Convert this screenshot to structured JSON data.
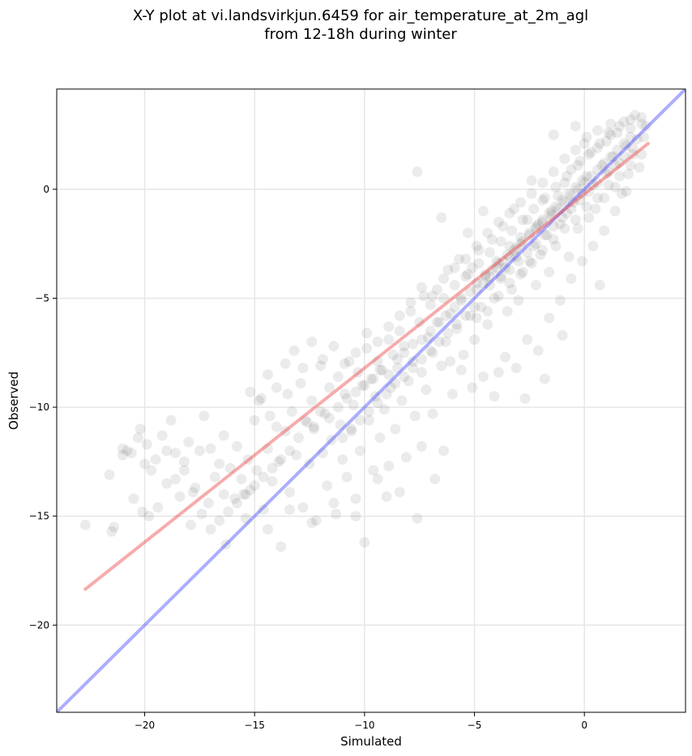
{
  "chart_data": {
    "type": "scatter",
    "title_lines": [
      "X-Y plot at vi.landsvirkjun.6459 for air_temperature_at_2m_agl",
      "from 12-18h during winter"
    ],
    "xlabel": "Simulated",
    "ylabel": "Observed",
    "xlim": [
      -24.0,
      4.6
    ],
    "ylim": [
      -24.0,
      4.6
    ],
    "xticks": [
      -20,
      -15,
      -10,
      -5,
      0
    ],
    "yticks": [
      -20,
      -15,
      -10,
      -5,
      0
    ],
    "xtick_labels": [
      "−20",
      "−15",
      "−10",
      "−5",
      "0"
    ],
    "ytick_labels": [
      "−20",
      "−15",
      "−10",
      "−5",
      "0"
    ],
    "grid": true,
    "point_color": "#000000",
    "point_opacity": 0.08,
    "reference_line": {
      "kind": "one-to-one",
      "color": "#3333ff",
      "x": [
        -24.0,
        4.6
      ],
      "y": [
        -24.0,
        4.6
      ]
    },
    "fit_line": {
      "kind": "linear-fit",
      "color": "#ee4444",
      "x": [
        -22.7,
        2.9
      ],
      "y": [
        -18.35,
        2.1
      ]
    },
    "points": [
      [
        -22.7,
        -15.4
      ],
      [
        -21.6,
        -13.1
      ],
      [
        -21.5,
        -15.7
      ],
      [
        -21.4,
        -15.5
      ],
      [
        -21.0,
        -12.2
      ],
      [
        -20.8,
        -12.0
      ],
      [
        -20.5,
        -14.2
      ],
      [
        -20.3,
        -11.4
      ],
      [
        -20.1,
        -14.8
      ],
      [
        -20.0,
        -12.6
      ],
      [
        -19.9,
        -11.7
      ],
      [
        -19.7,
        -12.9
      ],
      [
        -19.5,
        -12.4
      ],
      [
        -19.2,
        -11.3
      ],
      [
        -19.0,
        -13.5
      ],
      [
        -18.8,
        -10.6
      ],
      [
        -18.6,
        -12.1
      ],
      [
        -18.4,
        -14.1
      ],
      [
        -18.2,
        -12.9
      ],
      [
        -18.0,
        -11.6
      ],
      [
        -17.9,
        -15.4
      ],
      [
        -17.7,
        -13.7
      ],
      [
        -17.5,
        -12.0
      ],
      [
        -17.3,
        -10.4
      ],
      [
        -17.1,
        -14.4
      ],
      [
        -17.0,
        -11.9
      ],
      [
        -16.8,
        -13.2
      ],
      [
        -16.6,
        -12.6
      ],
      [
        -16.4,
        -11.3
      ],
      [
        -16.3,
        -16.3
      ],
      [
        -16.1,
        -12.8
      ],
      [
        -15.9,
        -14.2
      ],
      [
        -15.8,
        -11.8
      ],
      [
        -15.6,
        -13.3
      ],
      [
        -15.5,
        -14.0
      ],
      [
        -15.3,
        -12.4
      ],
      [
        -15.2,
        -13.8
      ],
      [
        -15.0,
        -10.6
      ],
      [
        -14.9,
        -12.9
      ],
      [
        -14.7,
        -9.6
      ],
      [
        -14.6,
        -14.7
      ],
      [
        -14.4,
        -11.9
      ],
      [
        -14.3,
        -10.4
      ],
      [
        -14.2,
        -13.4
      ],
      [
        -14.0,
        -10.9
      ],
      [
        -13.9,
        -12.5
      ],
      [
        -13.8,
        -16.4
      ],
      [
        -13.6,
        -11.1
      ],
      [
        -13.5,
        -9.4
      ],
      [
        -13.4,
        -13.9
      ],
      [
        -13.3,
        -10.2
      ],
      [
        -13.1,
        -12.2
      ],
      [
        -13.0,
        -11.4
      ],
      [
        -12.9,
        -8.9
      ],
      [
        -12.8,
        -14.6
      ],
      [
        -12.6,
        -10.7
      ],
      [
        -12.5,
        -12.6
      ],
      [
        -12.4,
        -9.7
      ],
      [
        -12.3,
        -11.0
      ],
      [
        -12.2,
        -15.2
      ],
      [
        -12.0,
        -8.1
      ],
      [
        -11.9,
        -12.1
      ],
      [
        -11.8,
        -10.3
      ],
      [
        -11.7,
        -13.6
      ],
      [
        -11.6,
        -9.1
      ],
      [
        -11.5,
        -11.5
      ],
      [
        -11.3,
        -14.9
      ],
      [
        -11.2,
        -8.6
      ],
      [
        -11.1,
        -10.8
      ],
      [
        -11.0,
        -12.4
      ],
      [
        -10.9,
        -9.4
      ],
      [
        -10.8,
        -13.2
      ],
      [
        -10.7,
        -7.9
      ],
      [
        -10.6,
        -11.1
      ],
      [
        -10.5,
        -9.9
      ],
      [
        -10.4,
        -14.2
      ],
      [
        -10.3,
        -8.4
      ],
      [
        -10.2,
        -12.0
      ],
      [
        -10.1,
        -9.0
      ],
      [
        -10.0,
        -16.2
      ],
      [
        -9.9,
        -7.3
      ],
      [
        -9.8,
        -10.6
      ],
      [
        -9.7,
        -8.7
      ],
      [
        -9.6,
        -12.9
      ],
      [
        -9.5,
        -9.5
      ],
      [
        -9.4,
        -7.9
      ],
      [
        -9.3,
        -11.4
      ],
      [
        -9.2,
        -8.3
      ],
      [
        -9.1,
        -10.1
      ],
      [
        -9.0,
        -14.1
      ],
      [
        -8.9,
        -6.9
      ],
      [
        -8.8,
        -9.1
      ],
      [
        -8.7,
        -7.6
      ],
      [
        -8.6,
        -11.0
      ],
      [
        -8.5,
        -8.2
      ],
      [
        -8.4,
        -6.5
      ],
      [
        -8.3,
        -9.7
      ],
      [
        -8.2,
        -7.2
      ],
      [
        -8.1,
        -12.3
      ],
      [
        -8.0,
        -8.8
      ],
      [
        -7.9,
        -5.6
      ],
      [
        -7.8,
        -7.9
      ],
      [
        -7.7,
        -10.4
      ],
      [
        -7.6,
        -15.1
      ],
      [
        -7.6,
        0.8
      ],
      [
        -7.5,
        -6.1
      ],
      [
        -7.4,
        -8.4
      ],
      [
        -7.3,
        -4.9
      ],
      [
        -7.2,
        -9.2
      ],
      [
        -7.1,
        -6.8
      ],
      [
        -7.0,
        -5.3
      ],
      [
        -6.9,
        -7.5
      ],
      [
        -6.8,
        -13.3
      ],
      [
        -6.7,
        -4.6
      ],
      [
        -6.6,
        -6.1
      ],
      [
        -6.5,
        -8.1
      ],
      [
        -6.5,
        -1.3
      ],
      [
        -6.4,
        -5.0
      ],
      [
        -6.3,
        -7.0
      ],
      [
        -6.2,
        -3.7
      ],
      [
        -6.1,
        -5.7
      ],
      [
        -6.0,
        -9.4
      ],
      [
        -5.9,
        -4.4
      ],
      [
        -5.8,
        -6.4
      ],
      [
        -5.7,
        -3.2
      ],
      [
        -5.6,
        -5.1
      ],
      [
        -5.5,
        -7.6
      ],
      [
        -5.4,
        -4.0
      ],
      [
        -5.3,
        -2.0
      ],
      [
        -5.2,
        -5.8
      ],
      [
        -5.1,
        -3.6
      ],
      [
        -5.0,
        -6.9
      ],
      [
        -4.9,
        -4.6
      ],
      [
        -4.8,
        -2.8
      ],
      [
        -4.7,
        -5.4
      ],
      [
        -4.6,
        -1.0
      ],
      [
        -4.5,
        -3.9
      ],
      [
        -4.4,
        -6.2
      ],
      [
        -4.3,
        -4.4
      ],
      [
        -4.2,
        -2.3
      ],
      [
        -4.1,
        -5.0
      ],
      [
        -4.0,
        -3.3
      ],
      [
        -3.9,
        -8.4
      ],
      [
        -3.8,
        -4.1
      ],
      [
        -3.7,
        -1.7
      ],
      [
        -3.6,
        -3.6
      ],
      [
        -3.5,
        -5.6
      ],
      [
        -3.4,
        -2.6
      ],
      [
        -3.3,
        -4.6
      ],
      [
        -3.2,
        -0.9
      ],
      [
        -3.1,
        -3.1
      ],
      [
        -3.0,
        -5.1
      ],
      [
        -2.9,
        -2.2
      ],
      [
        -2.8,
        -3.8
      ],
      [
        -2.7,
        -9.6
      ],
      [
        -2.6,
        -1.4
      ],
      [
        -2.5,
        -3.3
      ],
      [
        -2.4,
        0.4
      ],
      [
        -2.3,
        -2.6
      ],
      [
        -2.2,
        -4.4
      ],
      [
        -2.1,
        -1.6
      ],
      [
        -2.0,
        -3.0
      ],
      [
        -1.9,
        -0.5
      ],
      [
        -1.8,
        -8.7
      ],
      [
        -1.7,
        -2.1
      ],
      [
        -1.6,
        -3.8
      ],
      [
        -1.5,
        -1.0
      ],
      [
        -1.4,
        2.5
      ],
      [
        -1.3,
        -2.6
      ],
      [
        -1.2,
        -0.3
      ],
      [
        -1.1,
        -1.6
      ],
      [
        -1.0,
        -6.7
      ],
      [
        -0.9,
        0.3
      ],
      [
        -0.8,
        -1.1
      ],
      [
        -0.7,
        -3.1
      ],
      [
        -0.6,
        0.9
      ],
      [
        -0.5,
        -0.6
      ],
      [
        -0.4,
        2.9
      ],
      [
        -0.3,
        -1.8
      ],
      [
        -0.2,
        1.3
      ],
      [
        -0.1,
        -0.2
      ],
      [
        0.0,
        2.1
      ],
      [
        0.1,
        0.6
      ],
      [
        0.2,
        -1.3
      ],
      [
        0.3,
        1.7
      ],
      [
        0.4,
        0.2
      ],
      [
        0.5,
        -0.9
      ],
      [
        0.6,
        2.7
      ],
      [
        0.7,
        -4.4
      ],
      [
        0.8,
        1.1
      ],
      [
        0.9,
        -0.4
      ],
      [
        1.0,
        2.2
      ],
      [
        1.1,
        0.8
      ],
      [
        1.2,
        3.0
      ],
      [
        1.3,
        1.5
      ],
      [
        1.4,
        0.1
      ],
      [
        1.5,
        2.6
      ],
      [
        1.6,
        1.2
      ],
      [
        1.7,
        -0.2
      ],
      [
        1.8,
        3.1
      ],
      [
        1.9,
        2.0
      ],
      [
        2.0,
        0.7
      ],
      [
        2.1,
        2.8
      ],
      [
        2.2,
        1.6
      ],
      [
        2.3,
        3.4
      ],
      [
        2.4,
        2.3
      ],
      [
        2.5,
        1.0
      ],
      [
        2.6,
        3.3
      ],
      [
        2.7,
        2.4
      ],
      [
        2.8,
        2.9
      ],
      [
        -12.7,
        -10.6
      ],
      [
        -12.3,
        -10.9
      ],
      [
        -12.0,
        -10.2
      ],
      [
        -11.6,
        -10.5
      ],
      [
        -11.2,
        -10.0
      ],
      [
        -10.8,
        -9.6
      ],
      [
        -10.4,
        -9.3
      ],
      [
        -10.0,
        -9.0
      ],
      [
        -9.6,
        -8.7
      ],
      [
        -9.3,
        -8.3
      ],
      [
        -8.9,
        -8.5
      ],
      [
        -8.5,
        -7.8
      ],
      [
        -8.2,
        -7.5
      ],
      [
        -7.8,
        -7.1
      ],
      [
        -7.4,
        -6.9
      ],
      [
        -7.0,
        -6.5
      ],
      [
        -6.7,
        -6.1
      ],
      [
        -6.3,
        -5.8
      ],
      [
        -5.9,
        -5.4
      ],
      [
        -5.6,
        -5.0
      ],
      [
        -5.2,
        -4.7
      ],
      [
        -4.9,
        -4.3
      ],
      [
        -4.5,
        -4.0
      ],
      [
        -4.2,
        -3.7
      ],
      [
        -3.9,
        -3.4
      ],
      [
        -3.5,
        -3.0
      ],
      [
        -3.2,
        -2.8
      ],
      [
        -2.9,
        -2.5
      ],
      [
        -2.5,
        -2.1
      ],
      [
        -2.2,
        -1.8
      ],
      [
        -1.9,
        -1.5
      ],
      [
        -1.5,
        -1.2
      ],
      [
        -1.2,
        -0.9
      ],
      [
        -0.9,
        -0.6
      ],
      [
        -0.6,
        -0.3
      ],
      [
        -0.3,
        0.0
      ],
      [
        0.0,
        0.3
      ],
      [
        0.3,
        0.6
      ],
      [
        0.6,
        0.9
      ],
      [
        0.9,
        1.2
      ],
      [
        1.2,
        1.5
      ],
      [
        1.5,
        1.8
      ],
      [
        1.8,
        2.1
      ],
      [
        2.1,
        2.4
      ],
      [
        -4.6,
        -4.3
      ],
      [
        -4.3,
        -4.0
      ],
      [
        -4.0,
        -3.6
      ],
      [
        -3.7,
        -3.3
      ],
      [
        -3.4,
        -3.1
      ],
      [
        -3.1,
        -2.7
      ],
      [
        -2.8,
        -2.4
      ],
      [
        -2.5,
        -2.0
      ],
      [
        -2.2,
        -1.7
      ],
      [
        -1.9,
        -1.4
      ],
      [
        -1.6,
        -1.1
      ],
      [
        -1.3,
        -0.8
      ],
      [
        -1.0,
        -0.5
      ],
      [
        -0.7,
        -0.2
      ],
      [
        -0.4,
        0.1
      ],
      [
        -0.1,
        0.4
      ],
      [
        -3.8,
        -4.0
      ],
      [
        -3.4,
        -3.7
      ],
      [
        -3.0,
        -3.3
      ],
      [
        -2.6,
        -2.9
      ],
      [
        -2.2,
        -2.5
      ],
      [
        -1.8,
        -2.1
      ],
      [
        -1.4,
        -1.7
      ],
      [
        -1.0,
        -1.3
      ],
      [
        -0.6,
        -0.9
      ],
      [
        -0.2,
        -0.5
      ],
      [
        0.2,
        -0.1
      ],
      [
        0.6,
        0.3
      ],
      [
        1.0,
        0.7
      ],
      [
        1.4,
        1.1
      ],
      [
        1.8,
        1.5
      ],
      [
        2.2,
        1.9
      ],
      [
        -8.6,
        -8.9
      ],
      [
        -8.2,
        -8.6
      ],
      [
        -7.8,
        -8.2
      ],
      [
        -7.4,
        -7.8
      ],
      [
        -7.0,
        -7.4
      ],
      [
        -6.6,
        -7.0
      ],
      [
        -6.2,
        -6.6
      ],
      [
        -5.8,
        -6.2
      ],
      [
        -5.4,
        -5.8
      ],
      [
        -5.0,
        -5.4
      ],
      [
        -11.0,
        -11.4
      ],
      [
        -10.6,
        -11.0
      ],
      [
        -10.2,
        -10.6
      ],
      [
        -9.8,
        -10.2
      ],
      [
        -9.4,
        -9.8
      ],
      [
        -9.0,
        -9.4
      ],
      [
        -13.4,
        -12.0
      ],
      [
        -13.8,
        -12.4
      ],
      [
        -14.2,
        -12.8
      ],
      [
        -14.6,
        -13.2
      ],
      [
        -15.0,
        -13.6
      ],
      [
        -15.4,
        -14.0
      ],
      [
        -15.8,
        -14.4
      ],
      [
        -16.2,
        -14.8
      ],
      [
        -16.6,
        -15.2
      ],
      [
        -17.0,
        -15.6
      ],
      [
        -17.4,
        -14.9
      ],
      [
        -17.8,
        -13.9
      ],
      [
        -18.2,
        -12.5
      ],
      [
        -18.6,
        -13.3
      ],
      [
        -19.0,
        -12.0
      ],
      [
        -19.4,
        -14.6
      ],
      [
        -19.8,
        -15.0
      ],
      [
        -20.2,
        -11.0
      ],
      [
        -20.6,
        -12.1
      ],
      [
        -21.0,
        -11.9
      ],
      [
        -15.2,
        -9.3
      ],
      [
        -14.8,
        -9.7
      ],
      [
        -14.4,
        -8.5
      ],
      [
        -14.0,
        -9.1
      ],
      [
        -13.6,
        -8.0
      ],
      [
        -13.2,
        -7.4
      ],
      [
        -12.8,
        -8.2
      ],
      [
        -12.4,
        -7.0
      ],
      [
        -11.9,
        -7.8
      ],
      [
        -11.4,
        -7.2
      ],
      [
        -10.9,
        -8.0
      ],
      [
        -10.4,
        -7.5
      ],
      [
        -9.9,
        -6.6
      ],
      [
        -9.4,
        -7.0
      ],
      [
        -8.9,
        -6.3
      ],
      [
        -8.4,
        -5.8
      ],
      [
        -7.9,
        -5.2
      ],
      [
        -7.4,
        -4.5
      ],
      [
        -6.9,
        -4.9
      ],
      [
        -6.4,
        -4.1
      ],
      [
        -5.9,
        -3.6
      ],
      [
        -5.4,
        -3.2
      ],
      [
        -4.9,
        -2.6
      ],
      [
        -4.4,
        -2.0
      ],
      [
        -3.9,
        -1.5
      ],
      [
        -3.4,
        -1.1
      ],
      [
        -2.9,
        -0.6
      ],
      [
        -2.4,
        -0.2
      ],
      [
        -1.9,
        0.3
      ],
      [
        -1.4,
        0.8
      ],
      [
        -0.9,
        1.4
      ],
      [
        -0.4,
        1.8
      ],
      [
        0.1,
        2.4
      ],
      [
        0.6,
        1.9
      ],
      [
        1.1,
        2.6
      ],
      [
        1.6,
        2.9
      ],
      [
        2.1,
        3.2
      ],
      [
        2.6,
        3.0
      ],
      [
        -6.1,
        -7.9
      ],
      [
        -5.6,
        -8.3
      ],
      [
        -5.1,
        -9.1
      ],
      [
        -4.6,
        -8.6
      ],
      [
        -4.1,
        -9.5
      ],
      [
        -3.6,
        -7.7
      ],
      [
        -3.1,
        -8.2
      ],
      [
        -2.6,
        -6.9
      ],
      [
        -2.1,
        -7.4
      ],
      [
        -1.6,
        -5.9
      ],
      [
        -1.1,
        -5.1
      ],
      [
        -0.6,
        -4.1
      ],
      [
        -0.1,
        -3.3
      ],
      [
        0.4,
        -2.6
      ],
      [
        0.9,
        -1.9
      ],
      [
        1.4,
        -1.0
      ],
      [
        1.9,
        -0.1
      ],
      [
        -7.4,
        -11.8
      ],
      [
        -6.9,
        -10.3
      ],
      [
        -6.4,
        -12.0
      ],
      [
        -9.4,
        -13.3
      ],
      [
        -8.9,
        -12.7
      ],
      [
        -8.4,
        -13.9
      ],
      [
        -10.4,
        -15.0
      ],
      [
        -11.4,
        -14.4
      ],
      [
        -12.4,
        -15.3
      ],
      [
        -13.4,
        -14.7
      ],
      [
        -14.4,
        -15.6
      ],
      [
        -15.4,
        -15.1
      ],
      [
        -16.4,
        -14.0
      ],
      [
        -4.9,
        -5.9
      ],
      [
        -4.4,
        -5.6
      ],
      [
        -3.9,
        -4.9
      ],
      [
        -3.4,
        -4.3
      ],
      [
        -2.9,
        -3.9
      ],
      [
        -2.4,
        -3.4
      ],
      [
        -1.9,
        -2.8
      ],
      [
        -1.4,
        -2.3
      ],
      [
        -0.9,
        -1.8
      ],
      [
        -0.4,
        -1.4
      ],
      [
        0.1,
        -0.8
      ],
      [
        0.6,
        -0.4
      ],
      [
        1.1,
        0.2
      ],
      [
        1.6,
        0.6
      ],
      [
        2.1,
        1.1
      ],
      [
        2.6,
        1.6
      ],
      [
        -5.3,
        -3.9
      ],
      [
        -4.8,
        -3.4
      ],
      [
        -4.3,
        -2.9
      ],
      [
        -3.8,
        -2.4
      ],
      [
        -3.3,
        -1.9
      ],
      [
        -2.8,
        -1.4
      ],
      [
        -2.3,
        -0.9
      ],
      [
        -1.8,
        -0.4
      ],
      [
        -1.3,
        0.1
      ],
      [
        -0.8,
        0.6
      ],
      [
        -0.3,
        1.1
      ],
      [
        0.2,
        1.6
      ],
      [
        0.7,
        2.1
      ],
      [
        1.2,
        2.5
      ]
    ]
  }
}
